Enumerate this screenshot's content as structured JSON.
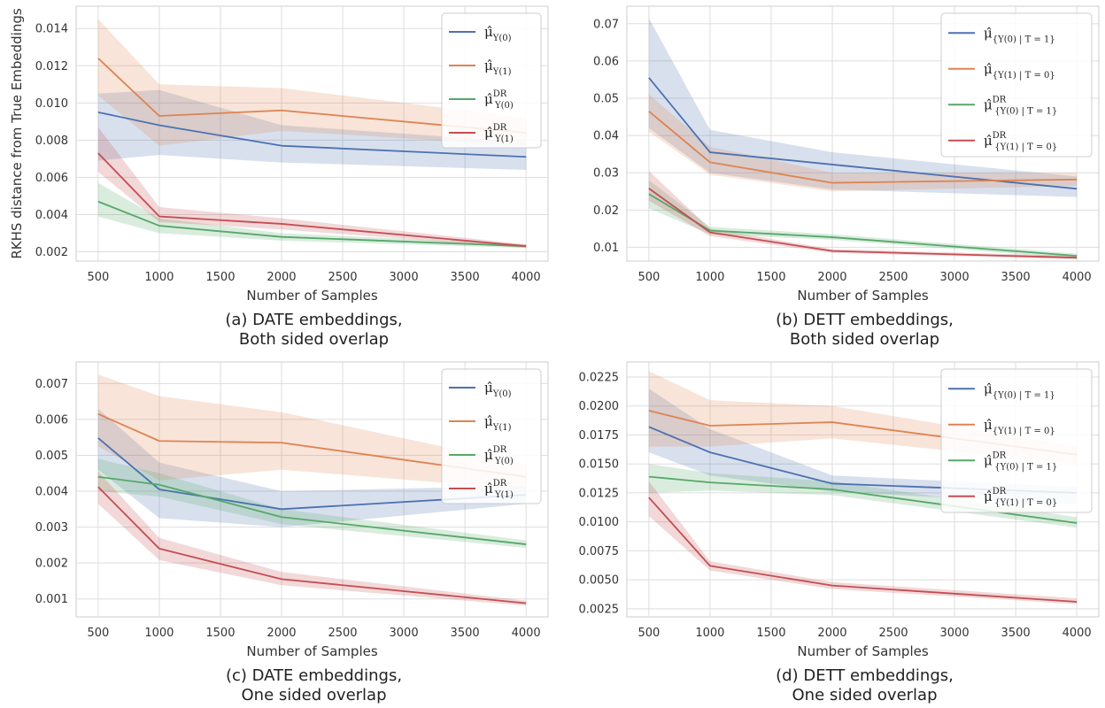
{
  "shared_ylabel": "RKHS distance from True Embeddings",
  "colors": {
    "blue": "#4c72b0",
    "orange": "#dd8452",
    "green": "#55a868",
    "red": "#c44e52"
  },
  "chart_data": [
    {
      "type": "line",
      "caption_line1": "(a) DATE embeddings,",
      "caption_line2": "Both sided overlap",
      "xlabel": "Number of Samples",
      "x": [
        500,
        1000,
        2000,
        4000
      ],
      "xticks": [
        500,
        1000,
        1500,
        2000,
        2500,
        3000,
        3500,
        4000
      ],
      "ylim": [
        0.0015,
        0.0152
      ],
      "yticks": [
        "0.002",
        "0.004",
        "0.006",
        "0.008",
        "0.010",
        "0.012",
        "0.014"
      ],
      "grid": true,
      "legend_position": "top-right",
      "series": [
        {
          "legend_base": "μ̂",
          "legend_sup": "",
          "legend_sub": "Y(0)",
          "color": "#4c72b0",
          "values": [
            0.0095,
            0.0088,
            0.0077,
            0.0071
          ],
          "lower": [
            0.0069,
            0.0072,
            0.0068,
            0.0064
          ],
          "upper": [
            0.0105,
            0.0107,
            0.0088,
            0.0079
          ]
        },
        {
          "legend_base": "μ̂",
          "legend_sup": "",
          "legend_sub": "Y(1)",
          "color": "#dd8452",
          "values": [
            0.0124,
            0.0093,
            0.0096,
            0.0084
          ],
          "lower": [
            0.0104,
            0.0077,
            0.0085,
            0.0077
          ],
          "upper": [
            0.0145,
            0.011,
            0.0108,
            0.0092
          ]
        },
        {
          "legend_base": "μ̂",
          "legend_sup": "DR",
          "legend_sub": "Y(0)",
          "color": "#55a868",
          "values": [
            0.0047,
            0.0034,
            0.0028,
            0.0023
          ],
          "lower": [
            0.0039,
            0.003,
            0.0026,
            0.0022
          ],
          "upper": [
            0.0057,
            0.0038,
            0.003,
            0.0024
          ]
        },
        {
          "legend_base": "μ̂",
          "legend_sup": "DR",
          "legend_sub": "Y(1)",
          "color": "#c44e52",
          "values": [
            0.0073,
            0.0039,
            0.0035,
            0.0023
          ],
          "lower": [
            0.0063,
            0.0036,
            0.0032,
            0.0022
          ],
          "upper": [
            0.0087,
            0.0044,
            0.0038,
            0.0024
          ]
        }
      ]
    },
    {
      "type": "line",
      "caption_line1": "(b) DETT embeddings,",
      "caption_line2": "Both sided overlap",
      "xlabel": "Number of Samples",
      "x": [
        500,
        1000,
        2000,
        4000
      ],
      "xticks": [
        500,
        1000,
        1500,
        2000,
        2500,
        3000,
        3500,
        4000
      ],
      "ylim": [
        0.0063,
        0.0747
      ],
      "yticks": [
        "0.01",
        "0.02",
        "0.03",
        "0.04",
        "0.05",
        "0.06",
        "0.07"
      ],
      "grid": true,
      "legend_position": "top-right",
      "series": [
        {
          "legend_base": "μ̂",
          "legend_sup": "",
          "legend_sub": "{Y(0) | T = 1}",
          "color": "#4c72b0",
          "values": [
            0.0555,
            0.0355,
            0.0322,
            0.0257
          ],
          "lower": [
            0.042,
            0.03,
            0.0255,
            0.0235
          ],
          "upper": [
            0.0715,
            0.0415,
            0.0355,
            0.029
          ]
        },
        {
          "legend_base": "μ̂",
          "legend_sup": "",
          "legend_sub": "{Y(1) | T = 0}",
          "color": "#dd8452",
          "values": [
            0.0465,
            0.0328,
            0.0273,
            0.0282
          ],
          "lower": [
            0.041,
            0.0295,
            0.025,
            0.0265
          ],
          "upper": [
            0.051,
            0.037,
            0.03,
            0.03
          ]
        },
        {
          "legend_base": "μ̂",
          "legend_sup": "DR",
          "legend_sub": "{Y(0) | T = 1}",
          "color": "#55a868",
          "values": [
            0.0243,
            0.0145,
            0.0127,
            0.0077
          ],
          "lower": [
            0.0205,
            0.0135,
            0.012,
            0.007
          ],
          "upper": [
            0.028,
            0.0155,
            0.0135,
            0.0083
          ]
        },
        {
          "legend_base": "μ̂",
          "legend_sup": "DR",
          "legend_sub": "{Y(1) | T = 0}",
          "color": "#c44e52",
          "values": [
            0.0258,
            0.014,
            0.009,
            0.0072
          ],
          "lower": [
            0.0225,
            0.013,
            0.0085,
            0.0068
          ],
          "upper": [
            0.0305,
            0.015,
            0.0095,
            0.0077
          ]
        }
      ]
    },
    {
      "type": "line",
      "caption_line1": "(c) DATE embeddings,",
      "caption_line2": "One sided overlap",
      "xlabel": "Number of Samples",
      "x": [
        500,
        1000,
        2000,
        4000
      ],
      "xticks": [
        500,
        1000,
        1500,
        2000,
        2500,
        3000,
        3500,
        4000
      ],
      "ylim": [
        0.0005,
        0.0076
      ],
      "yticks": [
        "0.001",
        "0.002",
        "0.003",
        "0.004",
        "0.005",
        "0.006",
        "0.007"
      ],
      "grid": true,
      "legend_position": "top-right",
      "series": [
        {
          "legend_base": "μ̂",
          "legend_sup": "",
          "legend_sub": "Y(0)",
          "color": "#4c72b0",
          "values": [
            0.00548,
            0.00405,
            0.0035,
            0.0039
          ],
          "lower": [
            0.0046,
            0.00325,
            0.003,
            0.00365
          ],
          "upper": [
            0.0063,
            0.0048,
            0.004,
            0.00415
          ]
        },
        {
          "legend_base": "μ̂",
          "legend_sup": "",
          "legend_sub": "Y(1)",
          "color": "#dd8452",
          "values": [
            0.00615,
            0.0054,
            0.00535,
            0.0044
          ],
          "lower": [
            0.00525,
            0.0043,
            0.0046,
            0.00405
          ],
          "upper": [
            0.00725,
            0.00665,
            0.0062,
            0.00475
          ]
        },
        {
          "legend_base": "μ̂",
          "legend_sup": "DR",
          "legend_sub": "Y(0)",
          "color": "#55a868",
          "values": [
            0.0044,
            0.00418,
            0.00328,
            0.00252
          ],
          "lower": [
            0.004,
            0.00385,
            0.00308,
            0.00242
          ],
          "upper": [
            0.0049,
            0.0045,
            0.0035,
            0.00263
          ]
        },
        {
          "legend_base": "μ̂",
          "legend_sup": "DR",
          "legend_sub": "Y(1)",
          "color": "#c44e52",
          "values": [
            0.00412,
            0.0024,
            0.00155,
            0.00088
          ],
          "lower": [
            0.00365,
            0.00208,
            0.00138,
            0.00081
          ],
          "upper": [
            0.00455,
            0.0027,
            0.00175,
            0.00095
          ]
        }
      ]
    },
    {
      "type": "line",
      "caption_line1": "(d) DETT embeddings,",
      "caption_line2": "One sided overlap",
      "xlabel": "Number of Samples",
      "x": [
        500,
        1000,
        2000,
        4000
      ],
      "xticks": [
        500,
        1000,
        1500,
        2000,
        2500,
        3000,
        3500,
        4000
      ],
      "ylim": [
        0.0018,
        0.0238
      ],
      "yticks": [
        "0.0025",
        "0.0050",
        "0.0075",
        "0.0100",
        "0.0125",
        "0.0150",
        "0.0175",
        "0.0200",
        "0.0225"
      ],
      "grid": true,
      "legend_position": "top-right",
      "series": [
        {
          "legend_base": "μ̂",
          "legend_sup": "",
          "legend_sub": "{Y(0) | T = 1}",
          "color": "#4c72b0",
          "values": [
            0.0182,
            0.016,
            0.0133,
            0.0125
          ],
          "lower": [
            0.016,
            0.014,
            0.0126,
            0.0115
          ],
          "upper": [
            0.0215,
            0.018,
            0.014,
            0.013
          ]
        },
        {
          "legend_base": "μ̂",
          "legend_sup": "",
          "legend_sub": "{Y(1) | T = 0}",
          "color": "#dd8452",
          "values": [
            0.0196,
            0.0183,
            0.0186,
            0.0158
          ],
          "lower": [
            0.0165,
            0.0165,
            0.0172,
            0.015
          ],
          "upper": [
            0.023,
            0.0205,
            0.02,
            0.0165
          ]
        },
        {
          "legend_base": "μ̂",
          "legend_sup": "DR",
          "legend_sub": "{Y(0) | T = 1}",
          "color": "#55a868",
          "values": [
            0.0139,
            0.0134,
            0.0128,
            0.0099
          ],
          "lower": [
            0.0125,
            0.0127,
            0.0123,
            0.0095
          ],
          "upper": [
            0.015,
            0.0142,
            0.0135,
            0.0104
          ]
        },
        {
          "legend_base": "μ̂",
          "legend_sup": "DR",
          "legend_sub": "{Y(1) | T = 0}",
          "color": "#c44e52",
          "values": [
            0.0121,
            0.0062,
            0.0045,
            0.0031
          ],
          "lower": [
            0.0105,
            0.0058,
            0.0042,
            0.0029
          ],
          "upper": [
            0.0135,
            0.0066,
            0.0048,
            0.0034
          ]
        }
      ]
    }
  ]
}
